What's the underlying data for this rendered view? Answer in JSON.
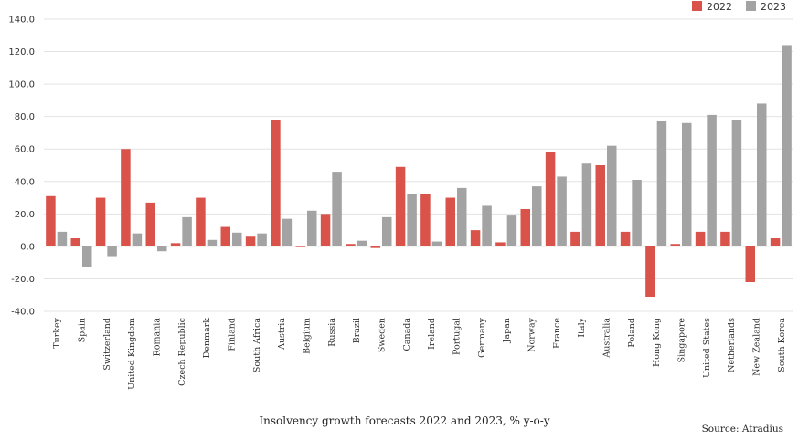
{
  "chart_data": {
    "type": "bar",
    "categories": [
      "Turkey",
      "Spain",
      "Switzerland",
      "United Kingdom",
      "Romania",
      "Czech Republic",
      "Denmark",
      "Finland",
      "South Africa",
      "Austria",
      "Belgium",
      "Russia",
      "Brazil",
      "Sweden",
      "Canada",
      "Ireland",
      "Portugal",
      "Germany",
      "Japan",
      "Norway",
      "France",
      "Italy",
      "Australia",
      "Poland",
      "Hong Kong",
      "Singapore",
      "United States",
      "Netherlands",
      "New Zealand",
      "South Korea"
    ],
    "series": [
      {
        "name": "2022",
        "color": "#d9534a",
        "values": [
          31,
          5,
          30,
          60,
          27,
          2,
          30,
          12,
          6,
          78,
          0,
          20,
          1.5,
          -1,
          49,
          32,
          30,
          10,
          2.5,
          23,
          58,
          9,
          50,
          9,
          -31,
          1.5,
          9,
          9,
          -22,
          5
        ]
      },
      {
        "name": "2023",
        "color": "#a3a3a3",
        "values": [
          9,
          -13,
          -6,
          8,
          -3,
          18,
          4,
          8.5,
          8,
          17,
          22,
          46,
          3.5,
          18,
          32,
          3,
          36,
          25,
          19,
          37,
          43,
          51,
          62,
          41,
          77,
          76,
          81,
          78,
          88,
          124
        ]
      }
    ],
    "ylim": [
      -40,
      140
    ],
    "yticks": [
      -40,
      -20,
      0,
      20,
      40,
      60,
      80,
      100,
      120,
      140
    ],
    "ytick_labels": [
      "-40.0",
      "-20.0",
      "0.0",
      "20.0",
      "40.0",
      "60.0",
      "80.0",
      "100.0",
      "120.0",
      "140.0"
    ],
    "grid": true,
    "legend_position": "top-right",
    "caption": "Insolvency growth forecasts 2022 and 2023, % y-o-y",
    "source": "Source: Atradius"
  }
}
